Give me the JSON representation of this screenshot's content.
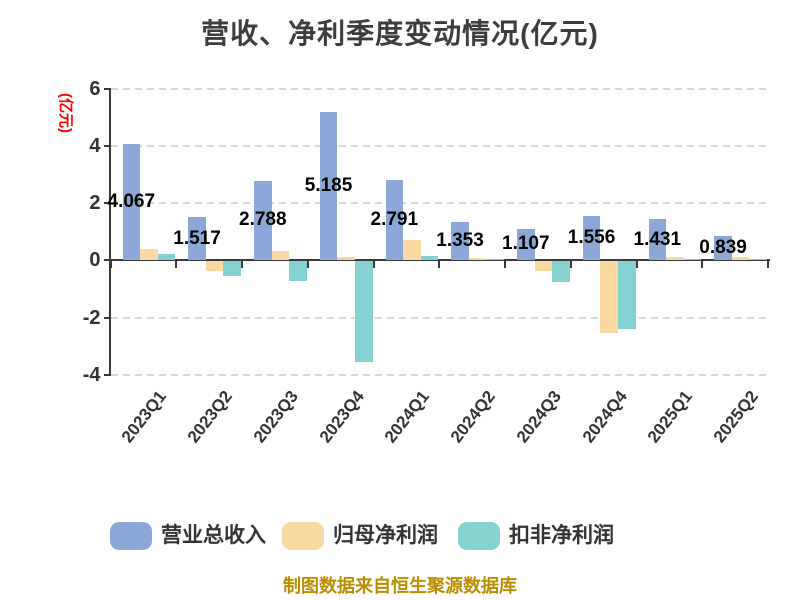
{
  "title": "营收、净利季度变动情况(亿元)",
  "y_axis_title": "(亿元)",
  "footer": "制图数据来自恒生聚源数据库",
  "colors": {
    "bar_blue": "#8CA8D8",
    "bar_tan": "#FBD9A2",
    "bar_teal": "#85D2D3",
    "axis": "#3A3A3A",
    "grid": "#D8D8D8",
    "tick_text": "#333333",
    "title_text": "#3D3D3D",
    "value_label_text": "#000000",
    "y_axis_title_red": "#FF0000",
    "footer_gold": "#BA8E00",
    "legend_text": "#333333"
  },
  "legend": {
    "items": [
      {
        "label": "营业总收入",
        "color": "#8CA8D8"
      },
      {
        "label": "归母净利润",
        "color": "#FBD9A2"
      },
      {
        "label": "扣非净利润",
        "color": "#85D2D3"
      }
    ]
  },
  "chart_data": {
    "type": "bar",
    "title": "营收、净利季度变动情况(亿元)",
    "ylabel": "(亿元)",
    "categories": [
      "2023Q1",
      "2023Q2",
      "2023Q3",
      "2023Q4",
      "2024Q1",
      "2024Q2",
      "2024Q3",
      "2024Q4",
      "2025Q1",
      "2025Q2"
    ],
    "series": [
      {
        "name": "营业总收入",
        "color": "#8CA8D8",
        "values": [
          4.067,
          1.517,
          2.788,
          5.185,
          2.791,
          1.353,
          1.107,
          1.556,
          1.431,
          0.839
        ],
        "labels_shown": true
      },
      {
        "name": "归母净利润",
        "color": "#FBD9A2",
        "values": [
          0.4,
          -0.35,
          0.33,
          0.13,
          0.72,
          0.08,
          -0.33,
          -2.5,
          0.1,
          0.1
        ],
        "labels_shown": false
      },
      {
        "name": "扣非净利润",
        "color": "#85D2D3",
        "values": [
          0.21,
          -0.5,
          -0.7,
          -3.53,
          0.14,
          0.04,
          -0.72,
          -2.38,
          0.04,
          0.02
        ],
        "labels_shown": false
      }
    ],
    "y_ticks": [
      6,
      4,
      2,
      0,
      -2,
      -4
    ],
    "ylim": [
      -4,
      6
    ],
    "grid": "dashed-horizontal",
    "legend_position": "bottom"
  }
}
